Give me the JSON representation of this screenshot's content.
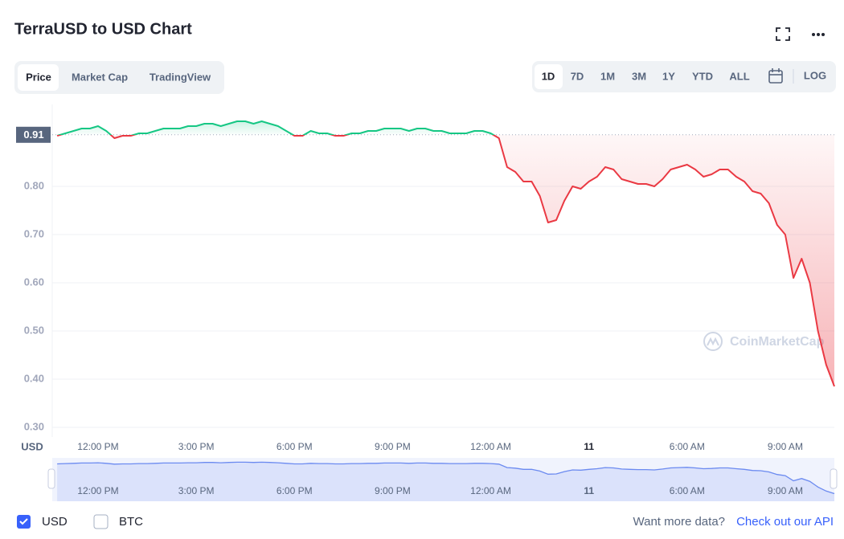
{
  "title": "TerraUSD to USD Chart",
  "tabs": [
    "Price",
    "Market Cap",
    "TradingView"
  ],
  "ranges": [
    "1D",
    "7D",
    "1M",
    "3M",
    "1Y",
    "YTD",
    "ALL"
  ],
  "log_button": "LOG",
  "watermark": "CoinMarketCap",
  "legend": [
    "USD",
    "BTC"
  ],
  "footer": {
    "text": "Want more data?",
    "link": "Check out our API"
  },
  "chart_data": {
    "type": "line",
    "y_unit_label": "USD",
    "categories": [
      null,
      null,
      null,
      null,
      null,
      "12:00 PM",
      null,
      null,
      null,
      null,
      null,
      null,
      null,
      null,
      null,
      null,
      null,
      "3:00 PM",
      null,
      null,
      null,
      null,
      null,
      null,
      null,
      null,
      null,
      null,
      null,
      "6:00 PM",
      null,
      null,
      null,
      null,
      null,
      null,
      null,
      null,
      null,
      null,
      null,
      "9:00 PM",
      null,
      null,
      null,
      null,
      null,
      null,
      null,
      null,
      null,
      null,
      null,
      "12:00 AM",
      null,
      null,
      null,
      null,
      null,
      null,
      null,
      null,
      null,
      null,
      null,
      "11",
      null,
      null,
      null,
      null,
      null,
      null,
      null,
      null,
      null,
      null,
      null,
      "6:00 AM",
      null,
      null,
      null,
      null,
      null,
      null,
      null,
      null,
      null,
      null,
      null,
      "9:00 AM",
      null,
      null,
      null,
      null,
      null,
      null
    ],
    "series": [
      {
        "name": "USD",
        "color_up": "#16c784",
        "color_down": "#ea3943",
        "values": [
          0.905,
          0.91,
          0.915,
          0.92,
          0.92,
          0.925,
          0.915,
          0.9,
          0.905,
          0.905,
          0.91,
          0.91,
          0.915,
          0.92,
          0.92,
          0.92,
          0.925,
          0.925,
          0.93,
          0.93,
          0.925,
          0.93,
          0.935,
          0.935,
          0.93,
          0.935,
          0.93,
          0.925,
          0.915,
          0.905,
          0.905,
          0.915,
          0.91,
          0.91,
          0.905,
          0.905,
          0.91,
          0.91,
          0.915,
          0.915,
          0.92,
          0.92,
          0.92,
          0.915,
          0.92,
          0.92,
          0.915,
          0.915,
          0.91,
          0.91,
          0.91,
          0.915,
          0.915,
          0.91,
          0.9,
          0.84,
          0.83,
          0.81,
          0.81,
          0.78,
          0.725,
          0.73,
          0.77,
          0.8,
          0.795,
          0.81,
          0.82,
          0.84,
          0.835,
          0.815,
          0.81,
          0.805,
          0.805,
          0.8,
          0.815,
          0.835,
          0.84,
          0.845,
          0.835,
          0.82,
          0.825,
          0.835,
          0.835,
          0.82,
          0.81,
          0.79,
          0.785,
          0.765,
          0.72,
          0.7,
          0.61,
          0.65,
          0.6,
          0.5,
          0.43,
          0.385
        ]
      }
    ],
    "reference_line": {
      "value": 0.907,
      "label": "0.91"
    },
    "ylim": [
      0.28,
      0.94
    ],
    "yticks": [
      {
        "value": 0.3,
        "label": "0.30"
      },
      {
        "value": 0.4,
        "label": "0.40"
      },
      {
        "value": 0.5,
        "label": "0.50"
      },
      {
        "value": 0.6,
        "label": "0.60"
      },
      {
        "value": 0.7,
        "label": "0.70"
      },
      {
        "value": 0.8,
        "label": "0.80"
      }
    ],
    "grid": true
  }
}
